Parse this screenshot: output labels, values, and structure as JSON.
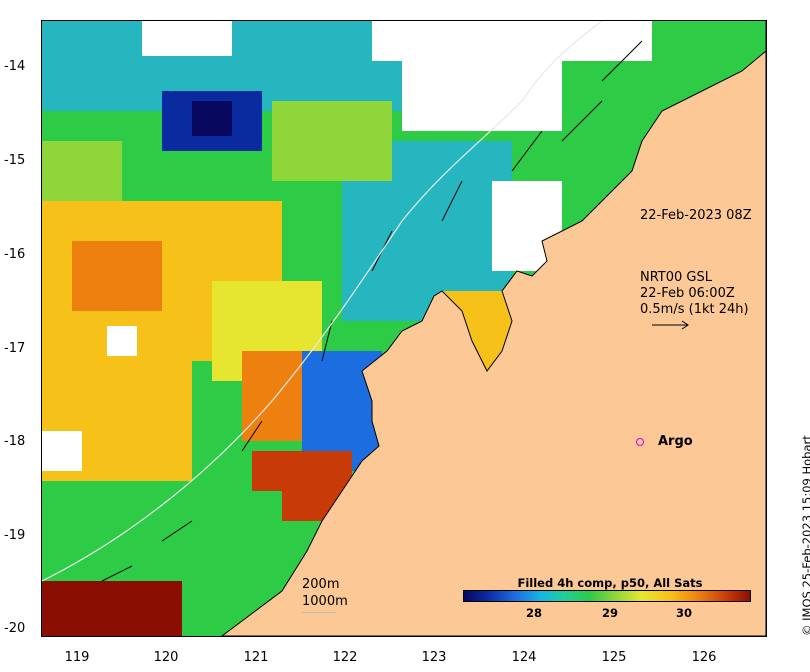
{
  "map": {
    "lat_ticks": [
      "-14",
      "-15",
      "-16",
      "-17",
      "-18",
      "-19",
      "-20"
    ],
    "lon_ticks": [
      "119",
      "120",
      "121",
      "122",
      "123",
      "124",
      "125",
      "126"
    ],
    "colors": {
      "land": "#fcc896",
      "coast": "#000000",
      "cloud": "#ffffff",
      "palette": [
        "#08085e",
        "#1c6ee0",
        "#16b6e6",
        "#2ecb46",
        "#8fd63a",
        "#e6e630",
        "#f6c21a",
        "#ee8010",
        "#c83a08",
        "#8a0e02"
      ]
    }
  },
  "annotations": {
    "timestamp": "22-Feb-2023 08Z",
    "current_product": "NRT00 GSL",
    "current_time": "22-Feb 06:00Z",
    "current_scale": "0.5m/s (1kt 24h)"
  },
  "argo": {
    "label": "Argo",
    "color": "#e000e0"
  },
  "bathymetry": {
    "contour_200": "200m",
    "contour_1000": "1000m"
  },
  "legend": {
    "title": "Filled 4h comp, p50, All Sats",
    "ticks": [
      "28",
      "29",
      "30"
    ]
  },
  "copyright": "© IMOS 25-Feb-2023 15:09 Hobart"
}
